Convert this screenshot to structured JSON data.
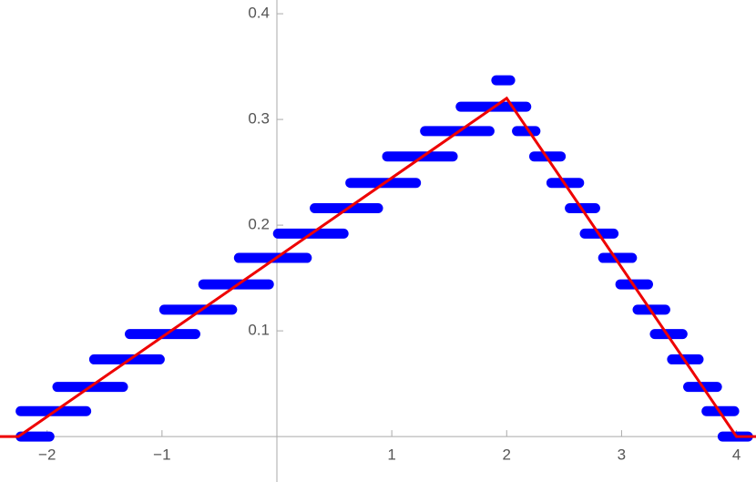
{
  "chart_data": {
    "type": "line",
    "xlim": [
      -2.41,
      4.17
    ],
    "ylim": [
      -0.043,
      0.413
    ],
    "xticks": [
      {
        "value": -2,
        "label": "−2"
      },
      {
        "value": -1,
        "label": "−1"
      },
      1,
      2,
      3,
      4
    ],
    "yticks": [
      0.1,
      0.2,
      0.3,
      0.4
    ],
    "series": [
      {
        "color": "#0000ff",
        "style": "segments",
        "x0": [
          -2.27,
          -2.27,
          -1.95,
          -1.63,
          -1.32,
          -1.02,
          -0.68,
          -0.37,
          -0.03,
          0.29,
          0.6,
          0.92,
          1.25,
          1.56,
          1.87,
          2.05,
          2.2,
          2.35,
          2.51,
          2.64,
          2.8,
          2.95,
          3.1,
          3.25,
          3.4,
          3.54,
          3.7,
          3.84
        ],
        "x1": [
          -1.94,
          -1.62,
          -1.3,
          -0.98,
          -0.67,
          -0.35,
          -0.03,
          0.3,
          0.62,
          0.92,
          1.25,
          1.57,
          1.89,
          2.21,
          2.07,
          2.29,
          2.51,
          2.67,
          2.81,
          2.97,
          3.13,
          3.27,
          3.42,
          3.57,
          3.71,
          3.87,
          4.02,
          4.14
        ],
        "values": [
          0,
          0.024,
          0.047,
          0.073,
          0.097,
          0.12,
          0.144,
          0.169,
          0.192,
          0.216,
          0.24,
          0.265,
          0.289,
          0.312,
          0.337,
          0.289,
          0.265,
          0.24,
          0.216,
          0.192,
          0.169,
          0.144,
          0.12,
          0.097,
          0.073,
          0.047,
          0.024,
          0
        ]
      },
      {
        "color": "#ee0000",
        "style": "line",
        "x": [
          -2.41,
          -2.25,
          2,
          4,
          4.17
        ],
        "values": [
          0,
          0,
          0.32,
          0,
          0
        ]
      }
    ]
  }
}
